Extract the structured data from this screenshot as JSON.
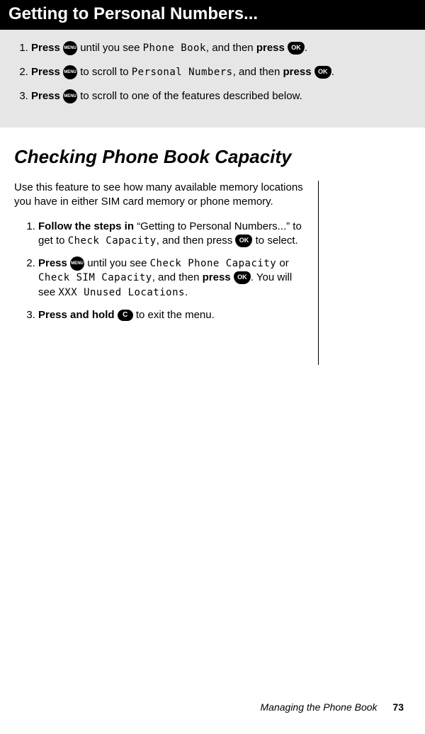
{
  "header": {
    "title": "Getting to Personal Numbers..."
  },
  "nav_steps": {
    "s1_a": "Press",
    "s1_b": "until you see",
    "s1_mono": "Phone Book",
    "s1_c": ", and then",
    "s1_d": "press",
    "s2_a": "Press",
    "s2_b": "to scroll to",
    "s2_mono": "Personal Numbers",
    "s2_c": ", and then",
    "s2_d": "press",
    "s3_a": "Press",
    "s3_b": "to scroll to one of the features described below."
  },
  "section": {
    "title": "Checking Phone Book Capacity",
    "intro": "Use this feature to see how many available memory locations you have in either SIM card memory or phone memory.",
    "steps": {
      "s1_a": "Follow the steps in",
      "s1_b": "“Getting to Personal Numbers...” to get to",
      "s1_mono": "Check Capacity",
      "s1_c": ", and then press",
      "s1_d": "to select.",
      "s2_a": "Press",
      "s2_b": "until you see",
      "s2_mono1": "Check Phone Capacity",
      "s2_or": "or",
      "s2_mono2": "Check SIM Capacity",
      "s2_c": ", and then",
      "s2_d": "press",
      "s2_e": ". You will see",
      "s2_mono3": "XXX Unused Locations",
      "s3_a": "Press and hold",
      "s3_b": "to exit the menu."
    }
  },
  "icons": {
    "menu": "MENU",
    "ok": "OK",
    "c": "C"
  },
  "footer": {
    "label": "Managing the Phone Book",
    "page": "73"
  }
}
